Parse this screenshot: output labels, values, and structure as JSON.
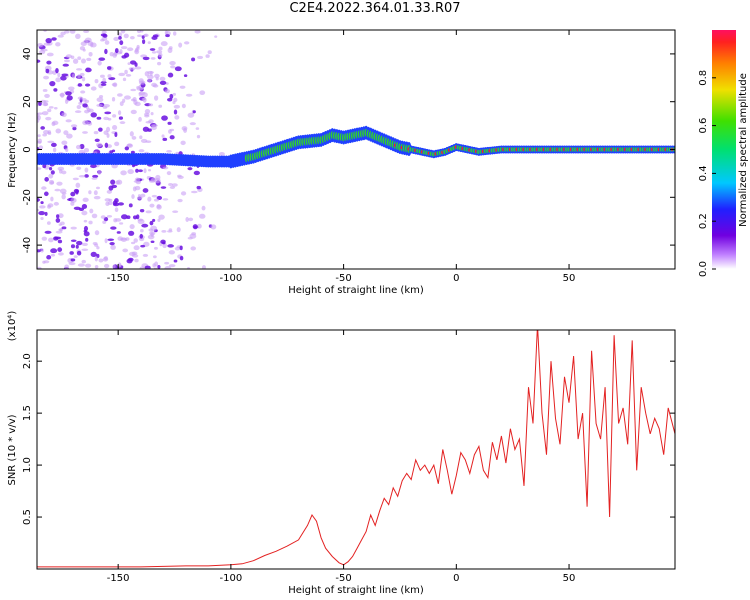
{
  "title": "C2E4.2022.364.01.33.R07",
  "colors": {
    "snr_line": "#e32222",
    "ridge_core": "#ff2020",
    "ridge_mid": "#30d030",
    "ridge_low": "#2040ff",
    "scatter": "#8a2be2"
  },
  "colorbar": {
    "label": "Normalized spectral amplitude",
    "ticks": [
      "0.0",
      "0.2",
      "0.4",
      "0.6",
      "0.8"
    ],
    "tick_values": [
      0.0,
      0.2,
      0.4,
      0.6,
      0.8
    ],
    "range": [
      0,
      1
    ]
  },
  "chart_data": [
    {
      "type": "heatmap",
      "xlabel": "Height of straight line (km)",
      "ylabel": "Frequency (Hz)",
      "xlim": [
        -186,
        97
      ],
      "ylim": [
        -50,
        50
      ],
      "x_ticks": [
        -150,
        -100,
        -50,
        0,
        50
      ],
      "x_tick_labels": [
        "-150",
        "-100",
        "-50",
        "0",
        "50"
      ],
      "y_ticks": [
        -40,
        -20,
        0,
        20,
        40
      ],
      "y_tick_labels": [
        "-40",
        "-20",
        "0",
        "20",
        "40"
      ],
      "ridge": {
        "x": [
          -186,
          -170,
          -150,
          -130,
          -110,
          -100,
          -90,
          -80,
          -70,
          -60,
          -55,
          -50,
          -45,
          -40,
          -35,
          -30,
          -25,
          -20,
          -15,
          -10,
          -5,
          0,
          5,
          10,
          20,
          30,
          50,
          70,
          97
        ],
        "freq": [
          -4,
          -4,
          -4,
          -4,
          -5,
          -5,
          -3,
          0,
          3,
          4,
          6,
          5,
          6,
          7,
          5,
          3,
          1,
          0,
          -1,
          -2,
          -1,
          1,
          0,
          -1,
          0,
          0,
          0,
          0,
          0
        ],
        "amplitude": [
          0.15,
          0.2,
          0.2,
          0.2,
          0.2,
          0.3,
          0.45,
          0.55,
          0.6,
          0.55,
          0.6,
          0.55,
          0.6,
          0.6,
          0.7,
          0.7,
          0.75,
          0.8,
          0.8,
          0.85,
          0.8,
          0.75,
          0.85,
          0.9,
          0.95,
          0.95,
          0.95,
          0.95,
          0.95
        ]
      },
      "scatter_extent": {
        "x": [
          -186,
          -100
        ],
        "freq": [
          -50,
          50
        ]
      }
    },
    {
      "type": "line",
      "xlabel": "Height of straight line (km)",
      "ylabel": "SNR (10 * v/v)",
      "y_multiplier": "(x10⁴)",
      "xlim": [
        -186,
        97
      ],
      "ylim": [
        0,
        2.3
      ],
      "x_ticks": [
        -150,
        -100,
        -50,
        0,
        50
      ],
      "x_tick_labels": [
        "-150",
        "-100",
        "-50",
        "0",
        "50"
      ],
      "y_ticks": [
        0.5,
        1.0,
        1.5,
        2.0
      ],
      "y_tick_labels": [
        "0.5",
        "1.0",
        "1.5",
        "2.0"
      ],
      "series": [
        {
          "x": [
            -186,
            -160,
            -140,
            -120,
            -110,
            -100,
            -95,
            -90,
            -85,
            -80,
            -75,
            -70,
            -68,
            -66,
            -64,
            -62,
            -60,
            -58,
            -55,
            -52,
            -50,
            -48,
            -46,
            -44,
            -42,
            -40,
            -38,
            -36,
            -34,
            -32,
            -30,
            -28,
            -26,
            -24,
            -22,
            -20,
            -18,
            -16,
            -14,
            -12,
            -10,
            -8,
            -6,
            -4,
            -2,
            0,
            2,
            4,
            6,
            8,
            10,
            12,
            14,
            16,
            18,
            20,
            22,
            24,
            26,
            28,
            30,
            32,
            34,
            36,
            38,
            40,
            42,
            44,
            46,
            48,
            50,
            52,
            54,
            56,
            58,
            60,
            62,
            64,
            66,
            68,
            70,
            72,
            74,
            76,
            78,
            80,
            82,
            84,
            86,
            88,
            90,
            92,
            94,
            97
          ],
          "values": [
            0.02,
            0.02,
            0.02,
            0.03,
            0.03,
            0.04,
            0.05,
            0.08,
            0.13,
            0.17,
            0.22,
            0.28,
            0.35,
            0.42,
            0.52,
            0.46,
            0.3,
            0.2,
            0.12,
            0.06,
            0.04,
            0.07,
            0.12,
            0.2,
            0.28,
            0.36,
            0.52,
            0.42,
            0.56,
            0.68,
            0.62,
            0.78,
            0.7,
            0.85,
            0.92,
            0.86,
            1.05,
            0.95,
            1.0,
            0.92,
            1.0,
            0.82,
            1.15,
            0.95,
            0.72,
            0.9,
            1.12,
            1.05,
            0.92,
            1.1,
            1.18,
            0.95,
            0.88,
            1.22,
            1.05,
            1.28,
            1.02,
            1.35,
            1.15,
            1.25,
            0.8,
            1.75,
            1.4,
            2.35,
            1.5,
            1.1,
            2.0,
            1.45,
            1.2,
            1.85,
            1.6,
            2.05,
            1.25,
            1.5,
            0.6,
            2.1,
            1.4,
            1.25,
            1.75,
            0.5,
            2.25,
            1.4,
            1.55,
            1.2,
            2.2,
            0.95,
            1.75,
            1.5,
            1.3,
            1.45,
            1.35,
            1.1,
            1.55,
            1.3
          ]
        }
      ]
    }
  ]
}
